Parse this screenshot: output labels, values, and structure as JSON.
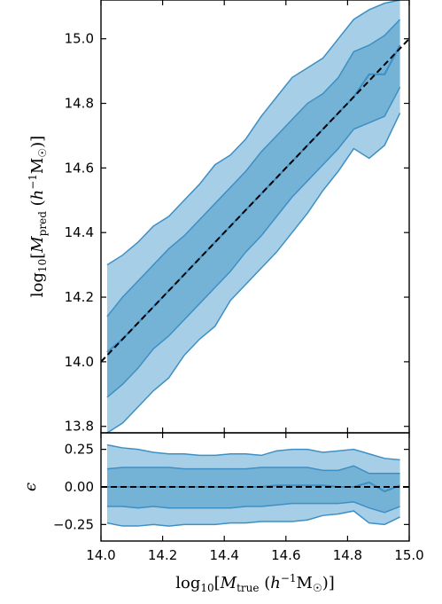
{
  "chart_data": [
    {
      "type": "area",
      "panel": "top",
      "x": [
        14.02,
        14.07,
        14.12,
        14.17,
        14.22,
        14.27,
        14.32,
        14.37,
        14.42,
        14.47,
        14.52,
        14.57,
        14.62,
        14.67,
        14.72,
        14.77,
        14.82,
        14.87,
        14.92,
        14.97
      ],
      "series": [
        {
          "band": "outer",
          "upper": [
            14.3,
            14.33,
            14.37,
            14.42,
            14.45,
            14.5,
            14.55,
            14.61,
            14.64,
            14.69,
            14.76,
            14.82,
            14.88,
            14.91,
            14.94,
            15.0,
            15.06,
            15.09,
            15.11,
            15.12
          ],
          "lower": [
            13.78,
            13.81,
            13.86,
            13.91,
            13.95,
            14.02,
            14.07,
            14.11,
            14.19,
            14.24,
            14.29,
            14.34,
            14.4,
            14.46,
            14.53,
            14.59,
            14.66,
            14.63,
            14.67,
            14.77
          ]
        },
        {
          "band": "inner",
          "upper": [
            14.14,
            14.2,
            14.25,
            14.3,
            14.35,
            14.39,
            14.44,
            14.49,
            14.54,
            14.59,
            14.65,
            14.7,
            14.75,
            14.8,
            14.83,
            14.88,
            14.96,
            14.98,
            15.01,
            15.06
          ],
          "lower": [
            13.89,
            13.93,
            13.98,
            14.04,
            14.08,
            14.13,
            14.18,
            14.23,
            14.28,
            14.34,
            14.39,
            14.45,
            14.51,
            14.56,
            14.61,
            14.66,
            14.72,
            14.74,
            14.76,
            14.85
          ]
        },
        {
          "band": "median",
          "values": [
            14.03,
            14.07,
            14.12,
            14.17,
            14.22,
            14.27,
            14.32,
            14.37,
            14.42,
            14.47,
            14.52,
            14.57,
            14.62,
            14.67,
            14.72,
            14.77,
            14.82,
            14.89,
            14.89,
            14.98
          ]
        },
        {
          "band": "one-to-one",
          "x": [
            14.0,
            15.0
          ],
          "values": [
            14.0,
            15.0
          ]
        }
      ],
      "xlim": [
        14.0,
        15.0
      ],
      "ylim": [
        13.78,
        15.12
      ],
      "yticks": [
        "13.8",
        "14.0",
        "14.2",
        "14.4",
        "14.6",
        "14.8",
        "15.0"
      ],
      "ytick_values": [
        13.8,
        14.0,
        14.2,
        14.4,
        14.6,
        14.8,
        15.0
      ],
      "xticks_values": [
        14.0,
        14.2,
        14.4,
        14.6,
        14.8,
        15.0
      ],
      "ylabel": "log10[Mpred (h−1M☉)]"
    },
    {
      "type": "area",
      "panel": "bottom",
      "x": [
        14.02,
        14.07,
        14.12,
        14.17,
        14.22,
        14.27,
        14.32,
        14.37,
        14.42,
        14.47,
        14.52,
        14.57,
        14.62,
        14.67,
        14.72,
        14.77,
        14.82,
        14.87,
        14.92,
        14.97
      ],
      "series": [
        {
          "band": "outer",
          "upper": [
            0.28,
            0.26,
            0.25,
            0.23,
            0.22,
            0.22,
            0.21,
            0.21,
            0.22,
            0.22,
            0.21,
            0.24,
            0.25,
            0.25,
            0.23,
            0.24,
            0.25,
            0.22,
            0.19,
            0.18
          ],
          "lower": [
            -0.24,
            -0.26,
            -0.26,
            -0.25,
            -0.26,
            -0.25,
            -0.25,
            -0.25,
            -0.24,
            -0.24,
            -0.23,
            -0.23,
            -0.23,
            -0.22,
            -0.19,
            -0.18,
            -0.16,
            -0.24,
            -0.25,
            -0.2
          ]
        },
        {
          "band": "inner",
          "upper": [
            0.12,
            0.13,
            0.13,
            0.13,
            0.13,
            0.12,
            0.12,
            0.12,
            0.12,
            0.12,
            0.13,
            0.13,
            0.13,
            0.13,
            0.11,
            0.11,
            0.14,
            0.09,
            0.09,
            0.09
          ],
          "lower": [
            -0.13,
            -0.13,
            -0.14,
            -0.13,
            -0.14,
            -0.14,
            -0.14,
            -0.14,
            -0.14,
            -0.13,
            -0.13,
            -0.12,
            -0.11,
            -0.11,
            -0.11,
            -0.11,
            -0.1,
            -0.14,
            -0.17,
            -0.13
          ]
        },
        {
          "band": "median",
          "values": [
            0.0,
            0.0,
            0.0,
            0.0,
            0.0,
            0.0,
            0.0,
            0.0,
            0.0,
            0.0,
            0.0,
            0.01,
            0.01,
            0.01,
            0.01,
            0.0,
            0.0,
            0.03,
            -0.03,
            0.01
          ]
        },
        {
          "band": "zero",
          "x": [
            14.0,
            15.0
          ],
          "values": [
            0.0,
            0.0
          ]
        }
      ],
      "xlim": [
        14.0,
        15.0
      ],
      "ylim": [
        -0.36,
        0.36
      ],
      "yticks": [
        "0.25",
        "0.00",
        "−0.25"
      ],
      "ytick_values": [
        0.25,
        0.0,
        -0.25
      ],
      "xticks": [
        "14.0",
        "14.2",
        "14.4",
        "14.6",
        "14.8",
        "15.0"
      ],
      "xtick_values": [
        14.0,
        14.2,
        14.4,
        14.6,
        14.8,
        15.0
      ],
      "xlabel": "log10[Mtrue (h−1M☉)]",
      "ylabel": "ϵ"
    }
  ],
  "colors": {
    "outer_band": "#a6cfe7",
    "inner_band": "#74b2d6",
    "band_edge": "#3e8fc4",
    "reference_line": "#000000"
  }
}
